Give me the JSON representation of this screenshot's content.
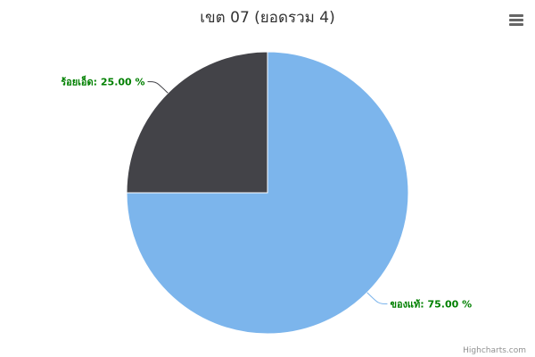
{
  "chart_data": {
    "type": "pie",
    "title": "เขต 07 (ยอดรวม 4)",
    "slices": [
      {
        "name": "ของแท้",
        "value": 75.0,
        "label": "ของแท้: 75.00 %",
        "color": "#7cb5ec"
      },
      {
        "name": "ร้อยเอ็ด",
        "value": 25.0,
        "label": "ร้อยเอ็ด: 25.00 %",
        "color": "#434348"
      }
    ],
    "label_color": "#008000"
  },
  "credits": "Highcharts.com",
  "menu": {
    "icon": "hamburger-menu-icon"
  }
}
